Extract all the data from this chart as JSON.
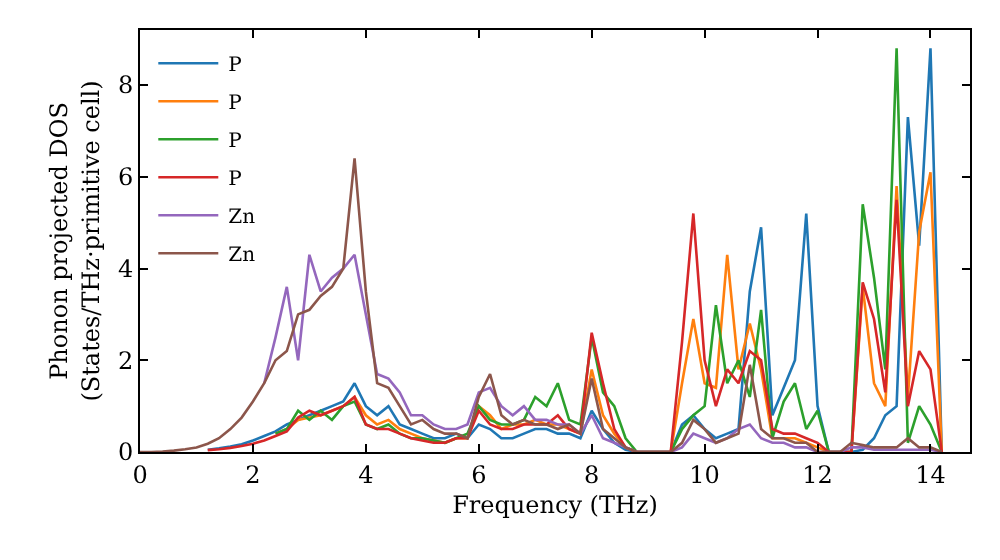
{
  "chart_data": {
    "type": "line",
    "xlabel": "Frequency (THz)",
    "ylabel": "Phonon projected DOS\n(States/THz·primitive cell)",
    "x": [
      0,
      0.2,
      0.4,
      0.6,
      0.8,
      1.0,
      1.2,
      1.4,
      1.6,
      1.8,
      2.0,
      2.2,
      2.4,
      2.6,
      2.8,
      3.0,
      3.2,
      3.4,
      3.6,
      3.8,
      4.0,
      4.2,
      4.4,
      4.6,
      4.8,
      5.0,
      5.2,
      5.4,
      5.6,
      5.8,
      6.0,
      6.2,
      6.4,
      6.6,
      6.8,
      7.0,
      7.2,
      7.4,
      7.6,
      7.8,
      8.0,
      8.2,
      8.4,
      8.6,
      8.8,
      9.0,
      9.2,
      9.4,
      9.6,
      9.8,
      10.0,
      10.2,
      10.4,
      10.6,
      10.8,
      11.0,
      11.2,
      11.4,
      11.6,
      11.8,
      12.0,
      12.2,
      12.4,
      12.6,
      12.8,
      13.0,
      13.2,
      13.4,
      13.6,
      13.8,
      14.0,
      14.2
    ],
    "xlim": [
      0,
      14.7
    ],
    "ylim": [
      0,
      9.2
    ],
    "xticks": [
      0,
      2,
      4,
      6,
      8,
      10,
      12,
      14
    ],
    "yticks": [
      0,
      2,
      4,
      6,
      8
    ],
    "legend": "top left",
    "marker": "none",
    "line_style": "solid",
    "series": [
      {
        "name": "P",
        "color": "#1f77b4",
        "values": [
          null,
          null,
          null,
          null,
          null,
          null,
          0.05,
          0.08,
          0.12,
          0.17,
          0.25,
          0.35,
          0.45,
          0.6,
          0.7,
          0.8,
          0.9,
          1.0,
          1.1,
          1.5,
          1.0,
          0.8,
          1.0,
          0.6,
          0.5,
          0.4,
          0.3,
          0.3,
          0.4,
          0.3,
          0.6,
          0.5,
          0.3,
          0.3,
          0.4,
          0.5,
          0.5,
          0.4,
          0.4,
          0.3,
          0.9,
          0.5,
          0.2,
          0.05,
          0,
          0,
          0,
          0,
          0.6,
          0.8,
          0.5,
          0.3,
          0.4,
          0.5,
          3.5,
          4.9,
          0.8,
          1.4,
          2.0,
          5.2,
          1.0,
          0,
          0,
          0,
          0.05,
          0.3,
          0.8,
          1.0,
          7.3,
          4.5,
          8.8,
          0
        ]
      },
      {
        "name": "P",
        "color": "#ff7f0e",
        "values": [
          null,
          null,
          null,
          null,
          null,
          null,
          null,
          null,
          null,
          null,
          null,
          null,
          0.4,
          0.5,
          0.7,
          0.75,
          0.8,
          0.9,
          1.0,
          1.2,
          0.8,
          0.6,
          0.7,
          0.5,
          0.4,
          0.3,
          0.25,
          0.2,
          0.3,
          0.3,
          1.0,
          0.8,
          0.5,
          0.6,
          0.6,
          0.7,
          0.6,
          0.6,
          0.5,
          0.4,
          1.8,
          0.8,
          0.4,
          0.1,
          0,
          0,
          0,
          0,
          1.5,
          2.9,
          1.5,
          1.4,
          4.3,
          1.8,
          2.8,
          1.8,
          0.3,
          0.3,
          0.3,
          0.2,
          0.1,
          0,
          0,
          0,
          3.6,
          1.5,
          1.0,
          5.8,
          1.2,
          4.8,
          6.1,
          0
        ]
      },
      {
        "name": "P",
        "color": "#2ca02c",
        "values": [
          null,
          null,
          null,
          null,
          null,
          null,
          null,
          null,
          null,
          null,
          null,
          null,
          0.4,
          0.5,
          0.9,
          0.7,
          0.9,
          0.7,
          1.0,
          1.1,
          0.6,
          0.5,
          0.6,
          0.4,
          0.3,
          0.3,
          0.25,
          0.2,
          0.3,
          0.4,
          1.0,
          0.7,
          0.6,
          0.6,
          0.7,
          1.2,
          1.0,
          1.5,
          0.7,
          0.6,
          2.5,
          1.3,
          1.0,
          0.3,
          0,
          0,
          0,
          0,
          0.5,
          0.8,
          1.0,
          3.2,
          1.5,
          2.0,
          1.2,
          3.1,
          0.3,
          1.1,
          1.5,
          0.5,
          0.9,
          0,
          0,
          0,
          5.4,
          3.8,
          1.8,
          8.8,
          0.2,
          1.0,
          0.6,
          0
        ]
      },
      {
        "name": "P",
        "color": "#d62728",
        "values": [
          null,
          null,
          null,
          null,
          null,
          null,
          0.04,
          0.06,
          0.09,
          0.13,
          0.18,
          0.25,
          0.35,
          0.45,
          0.75,
          0.9,
          0.8,
          0.9,
          1.0,
          1.2,
          0.6,
          0.5,
          0.5,
          0.4,
          0.3,
          0.25,
          0.2,
          0.2,
          0.3,
          0.3,
          0.9,
          0.6,
          0.5,
          0.5,
          0.6,
          0.6,
          0.6,
          0.8,
          0.5,
          0.4,
          2.6,
          1.5,
          0.5,
          0.1,
          0,
          0,
          0,
          0,
          2.4,
          5.2,
          2.0,
          1.0,
          1.8,
          1.5,
          2.2,
          2.0,
          0.5,
          0.4,
          0.4,
          0.3,
          0.2,
          0,
          0,
          0,
          3.7,
          2.9,
          1.3,
          5.5,
          1.0,
          2.2,
          1.8,
          0
        ]
      },
      {
        "name": "Zn",
        "color": "#9467bd",
        "values": [
          null,
          null,
          null,
          null,
          null,
          null,
          null,
          null,
          null,
          null,
          null,
          1.5,
          2.5,
          3.6,
          2.0,
          4.3,
          3.5,
          3.8,
          4.0,
          4.3,
          3.0,
          1.7,
          1.6,
          1.3,
          0.8,
          0.8,
          0.6,
          0.5,
          0.5,
          0.6,
          1.3,
          1.4,
          1.0,
          0.8,
          1.0,
          0.7,
          0.7,
          0.6,
          0.6,
          0.4,
          0.8,
          0.3,
          0.2,
          0.1,
          0,
          0,
          0,
          0,
          0.1,
          0.4,
          0.3,
          0.2,
          0.3,
          0.5,
          0.6,
          0.3,
          0.2,
          0.2,
          0.1,
          0.1,
          0,
          0,
          0,
          0.1,
          0.1,
          0.05,
          0.05,
          0.05,
          0.05,
          0.05,
          0.05,
          0
        ]
      },
      {
        "name": "Zn",
        "color": "#8c564b",
        "values": [
          0,
          0,
          0.01,
          0.03,
          0.06,
          0.1,
          0.18,
          0.3,
          0.5,
          0.75,
          1.1,
          1.5,
          2.0,
          2.2,
          3.0,
          3.1,
          3.4,
          3.6,
          4.0,
          6.4,
          3.5,
          1.5,
          1.4,
          1.0,
          0.6,
          0.7,
          0.5,
          0.4,
          0.4,
          0.3,
          1.2,
          1.7,
          0.8,
          0.6,
          0.7,
          0.6,
          0.6,
          0.5,
          0.6,
          0.4,
          1.6,
          0.5,
          0.3,
          0.1,
          0,
          0,
          0,
          0,
          0.2,
          0.7,
          0.5,
          0.2,
          0.3,
          0.4,
          1.9,
          0.5,
          0.3,
          0.3,
          0.2,
          0.2,
          0,
          0,
          0,
          0.2,
          0.15,
          0.1,
          0.1,
          0.1,
          0.3,
          0.1,
          0.1,
          0
        ]
      }
    ]
  }
}
